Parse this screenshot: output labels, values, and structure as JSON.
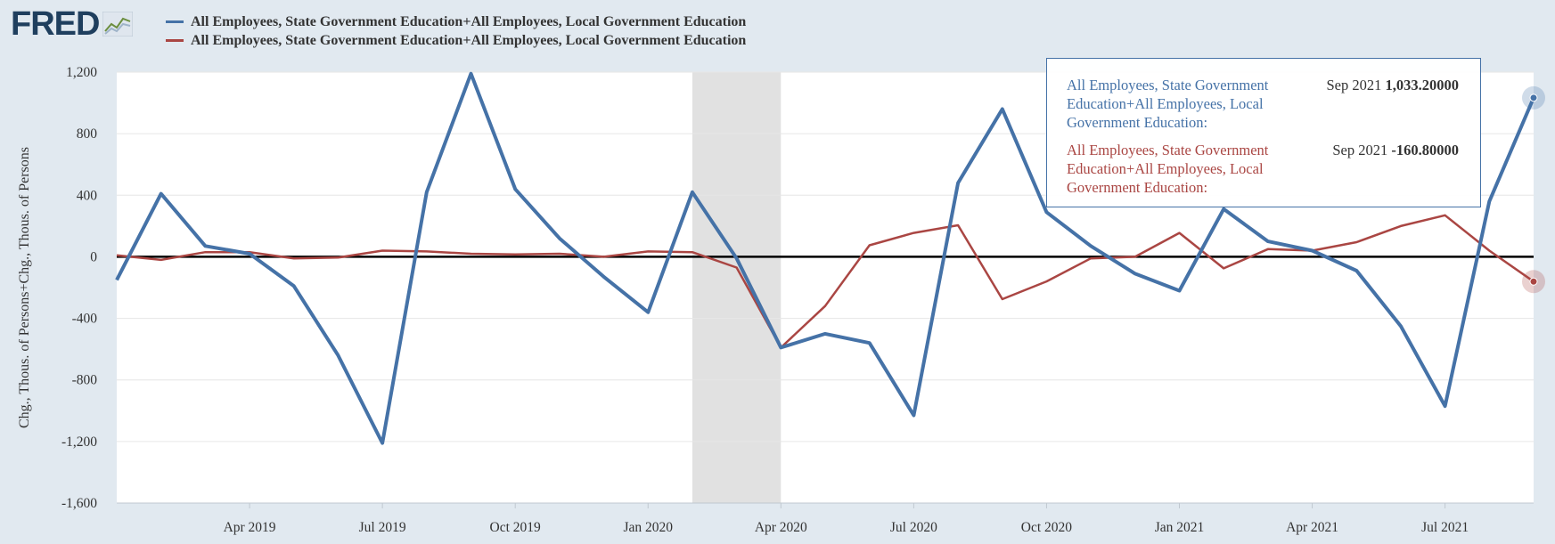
{
  "logo": {
    "text": "FRED",
    "icon": "fred-line-chart-icon"
  },
  "colors": {
    "series1": "#4572a7",
    "series2": "#aa4643",
    "recession": "#e1e1e1",
    "background": "#e1e9f0"
  },
  "tooltip": {
    "rows": [
      {
        "name": "All Employees, State Government Education+All Employees, Local Government Education:",
        "date": "Sep 2021",
        "value": "1,033.20000"
      },
      {
        "name": "All Employees, State Government Education+All Employees, Local Government Education:",
        "date": "Sep 2021",
        "value": "-160.80000"
      }
    ]
  },
  "chart_data": {
    "type": "line",
    "ylabel": "Chg., Thous. of Persons+Chg., Thous. of Persons",
    "ylim": [
      -1600,
      1200
    ],
    "yticks": [
      1200,
      800,
      400,
      0,
      -400,
      -800,
      -1200,
      -1600
    ],
    "ytick_labels": [
      "1,200",
      "800",
      "400",
      "0",
      "-400",
      "-800",
      "-1,200",
      "-1,600"
    ],
    "x": [
      "2019-01",
      "2019-02",
      "2019-03",
      "2019-04",
      "2019-05",
      "2019-06",
      "2019-07",
      "2019-08",
      "2019-09",
      "2019-10",
      "2019-11",
      "2019-12",
      "2020-01",
      "2020-02",
      "2020-03",
      "2020-04",
      "2020-05",
      "2020-06",
      "2020-07",
      "2020-08",
      "2020-09",
      "2020-10",
      "2020-11",
      "2020-12",
      "2021-01",
      "2021-02",
      "2021-03",
      "2021-04",
      "2021-05",
      "2021-06",
      "2021-07",
      "2021-08",
      "2021-09"
    ],
    "xticks": [
      "2019-04",
      "2019-07",
      "2019-10",
      "2020-01",
      "2020-04",
      "2020-07",
      "2020-10",
      "2021-01",
      "2021-04",
      "2021-07"
    ],
    "xtick_labels": [
      "Apr 2019",
      "Jul 2019",
      "Oct 2019",
      "Jan 2020",
      "Apr 2020",
      "Jul 2020",
      "Oct 2020",
      "Jan 2021",
      "Apr 2021",
      "Jul 2021"
    ],
    "recession": [
      "2020-02",
      "2020-04"
    ],
    "series": [
      {
        "name": "All Employees, State Government Education+All Employees, Local Government Education",
        "values": [
          -150,
          410,
          70,
          20,
          -190,
          -640,
          -1210,
          420,
          1190,
          440,
          120,
          -130,
          -360,
          420,
          -10,
          -590,
          -500,
          -560,
          -1030,
          480,
          960,
          290,
          70,
          -110,
          -220,
          310,
          100,
          40,
          -90,
          -450,
          -970,
          360,
          1033.2
        ]
      },
      {
        "name": "All Employees, State Government Education+All Employees, Local Government Education",
        "values": [
          10,
          -20,
          30,
          30,
          -10,
          -5,
          40,
          35,
          20,
          15,
          20,
          0,
          35,
          30,
          -70,
          -590,
          -320,
          75,
          155,
          205,
          -275,
          -160,
          -10,
          0,
          155,
          -75,
          50,
          40,
          95,
          200,
          270,
          40,
          -160.8
        ]
      }
    ]
  }
}
